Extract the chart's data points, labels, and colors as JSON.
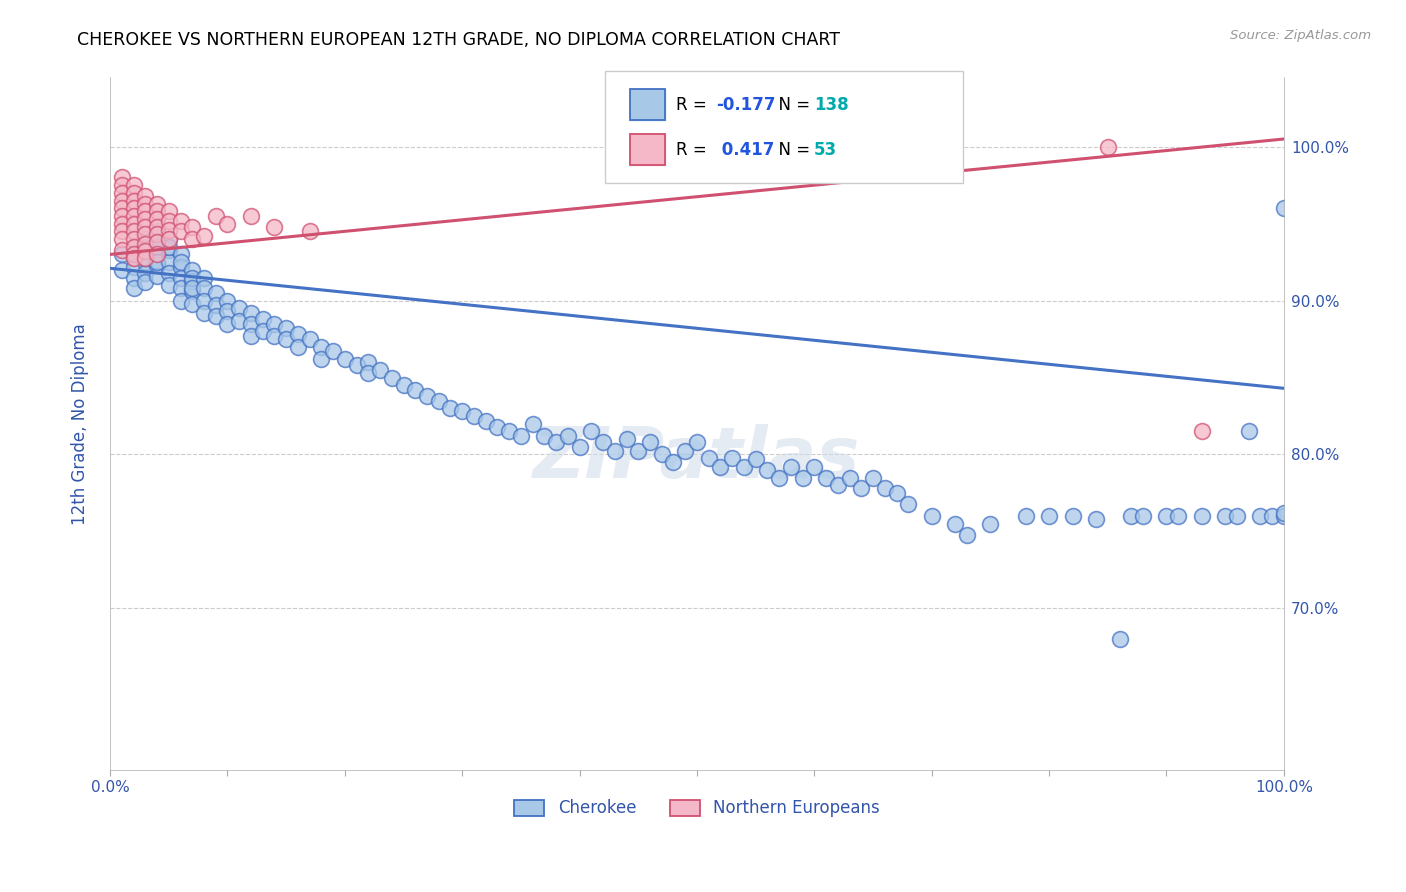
{
  "title": "CHEROKEE VS NORTHERN EUROPEAN 12TH GRADE, NO DIPLOMA CORRELATION CHART",
  "source": "Source: ZipAtlas.com",
  "ylabel": "12th Grade, No Diploma",
  "legend_cherokee": "Cherokee",
  "legend_northern": "Northern Europeans",
  "r_cherokee": -0.177,
  "n_cherokee": 138,
  "r_northern": 0.417,
  "n_northern": 53,
  "color_cherokee_fill": "#a8c8e8",
  "color_cherokee_edge": "#4472c4",
  "color_northern_fill": "#f4b8c8",
  "color_northern_edge": "#d05070",
  "color_cherokee_line": "#4472c4",
  "color_northern_line": "#d05070",
  "xlim": [
    0.0,
    1.0
  ],
  "ylim": [
    0.595,
    1.045
  ],
  "cherokee_x": [
    0.01,
    0.01,
    0.02,
    0.02,
    0.02,
    0.02,
    0.02,
    0.03,
    0.03,
    0.03,
    0.03,
    0.03,
    0.03,
    0.03,
    0.04,
    0.04,
    0.04,
    0.04,
    0.04,
    0.04,
    0.04,
    0.05,
    0.05,
    0.05,
    0.05,
    0.05,
    0.05,
    0.06,
    0.06,
    0.06,
    0.06,
    0.06,
    0.06,
    0.07,
    0.07,
    0.07,
    0.07,
    0.07,
    0.07,
    0.08,
    0.08,
    0.08,
    0.08,
    0.09,
    0.09,
    0.09,
    0.1,
    0.1,
    0.1,
    0.11,
    0.11,
    0.12,
    0.12,
    0.12,
    0.13,
    0.13,
    0.14,
    0.14,
    0.15,
    0.15,
    0.16,
    0.16,
    0.17,
    0.18,
    0.18,
    0.19,
    0.2,
    0.21,
    0.22,
    0.22,
    0.23,
    0.24,
    0.25,
    0.26,
    0.27,
    0.28,
    0.29,
    0.3,
    0.31,
    0.32,
    0.33,
    0.34,
    0.35,
    0.36,
    0.37,
    0.38,
    0.39,
    0.4,
    0.41,
    0.42,
    0.43,
    0.44,
    0.45,
    0.46,
    0.47,
    0.48,
    0.49,
    0.5,
    0.51,
    0.52,
    0.53,
    0.54,
    0.55,
    0.56,
    0.57,
    0.58,
    0.59,
    0.6,
    0.61,
    0.62,
    0.63,
    0.64,
    0.65,
    0.66,
    0.67,
    0.68,
    0.7,
    0.72,
    0.73,
    0.75,
    0.78,
    0.8,
    0.82,
    0.84,
    0.86,
    0.87,
    0.88,
    0.9,
    0.91,
    0.93,
    0.95,
    0.96,
    0.97,
    0.98,
    0.99,
    1.0,
    1.0,
    1.0
  ],
  "cherokee_y": [
    0.93,
    0.92,
    0.935,
    0.928,
    0.922,
    0.915,
    0.908,
    0.94,
    0.932,
    0.925,
    0.918,
    0.912,
    0.935,
    0.928,
    0.945,
    0.938,
    0.93,
    0.923,
    0.916,
    0.935,
    0.925,
    0.94,
    0.933,
    0.925,
    0.918,
    0.91,
    0.935,
    0.93,
    0.922,
    0.915,
    0.908,
    0.9,
    0.925,
    0.92,
    0.913,
    0.906,
    0.898,
    0.915,
    0.908,
    0.915,
    0.908,
    0.9,
    0.892,
    0.905,
    0.897,
    0.89,
    0.9,
    0.893,
    0.885,
    0.895,
    0.887,
    0.892,
    0.885,
    0.877,
    0.888,
    0.88,
    0.885,
    0.877,
    0.882,
    0.875,
    0.878,
    0.87,
    0.875,
    0.87,
    0.862,
    0.867,
    0.862,
    0.858,
    0.86,
    0.853,
    0.855,
    0.85,
    0.845,
    0.842,
    0.838,
    0.835,
    0.83,
    0.828,
    0.825,
    0.822,
    0.818,
    0.815,
    0.812,
    0.82,
    0.812,
    0.808,
    0.812,
    0.805,
    0.815,
    0.808,
    0.802,
    0.81,
    0.802,
    0.808,
    0.8,
    0.795,
    0.802,
    0.808,
    0.798,
    0.792,
    0.798,
    0.792,
    0.797,
    0.79,
    0.785,
    0.792,
    0.785,
    0.792,
    0.785,
    0.78,
    0.785,
    0.778,
    0.785,
    0.778,
    0.775,
    0.768,
    0.76,
    0.755,
    0.748,
    0.755,
    0.76,
    0.76,
    0.76,
    0.758,
    0.68,
    0.76,
    0.76,
    0.76,
    0.76,
    0.76,
    0.76,
    0.76,
    0.815,
    0.76,
    0.76,
    0.76,
    0.96,
    0.762
  ],
  "northern_x": [
    0.01,
    0.01,
    0.01,
    0.01,
    0.01,
    0.01,
    0.01,
    0.01,
    0.01,
    0.01,
    0.02,
    0.02,
    0.02,
    0.02,
    0.02,
    0.02,
    0.02,
    0.02,
    0.02,
    0.02,
    0.02,
    0.03,
    0.03,
    0.03,
    0.03,
    0.03,
    0.03,
    0.03,
    0.03,
    0.03,
    0.04,
    0.04,
    0.04,
    0.04,
    0.04,
    0.04,
    0.04,
    0.05,
    0.05,
    0.05,
    0.05,
    0.06,
    0.06,
    0.07,
    0.07,
    0.08,
    0.09,
    0.1,
    0.12,
    0.14,
    0.17,
    0.85,
    0.93
  ],
  "northern_y": [
    0.98,
    0.975,
    0.97,
    0.965,
    0.96,
    0.955,
    0.95,
    0.945,
    0.94,
    0.933,
    0.975,
    0.97,
    0.965,
    0.96,
    0.955,
    0.95,
    0.945,
    0.94,
    0.935,
    0.93,
    0.928,
    0.968,
    0.963,
    0.958,
    0.953,
    0.948,
    0.943,
    0.937,
    0.932,
    0.928,
    0.963,
    0.958,
    0.953,
    0.948,
    0.943,
    0.938,
    0.93,
    0.958,
    0.952,
    0.946,
    0.94,
    0.952,
    0.945,
    0.948,
    0.94,
    0.942,
    0.955,
    0.95,
    0.955,
    0.948,
    0.945,
    1.0,
    0.815
  ],
  "cherokee_line_x0": 0.0,
  "cherokee_line_y0": 0.921,
  "cherokee_line_x1": 1.0,
  "cherokee_line_y1": 0.843,
  "northern_line_x0": 0.0,
  "northern_line_y0": 0.93,
  "northern_line_x1": 1.0,
  "northern_line_y1": 1.005
}
